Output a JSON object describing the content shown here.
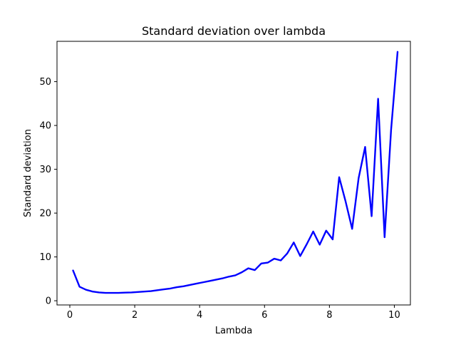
{
  "chart_data": {
    "type": "line",
    "title": "Standard deviation over lambda",
    "xlabel": "Lambda",
    "ylabel": "Standard deviation",
    "xlim": [
      -0.395,
      10.495
    ],
    "ylim": [
      -0.96,
      59.2
    ],
    "xticks": [
      0,
      2,
      4,
      6,
      8,
      10
    ],
    "yticks": [
      0,
      10,
      20,
      30,
      40,
      50
    ],
    "grid": false,
    "legend": "none",
    "series": [
      {
        "color": "#0000ff",
        "x": [
          0.1,
          0.3,
          0.5,
          0.7,
          0.9,
          1.1,
          1.3,
          1.5,
          1.7,
          1.9,
          2.1,
          2.3,
          2.5,
          2.7,
          2.9,
          3.1,
          3.3,
          3.5,
          3.7,
          3.9,
          4.1,
          4.3,
          4.5,
          4.7,
          4.9,
          5.1,
          5.3,
          5.5,
          5.7,
          5.9,
          6.1,
          6.3,
          6.5,
          6.7,
          6.9,
          7.1,
          7.3,
          7.5,
          7.7,
          7.9,
          8.1,
          8.3,
          8.5,
          8.7,
          8.9,
          9.1,
          9.3,
          9.5,
          9.7,
          9.9,
          10.1
        ],
        "values": [
          6.9,
          3.2,
          2.5,
          2.1,
          1.9,
          1.8,
          1.8,
          1.8,
          1.85,
          1.9,
          2.0,
          2.1,
          2.2,
          2.4,
          2.6,
          2.8,
          3.1,
          3.3,
          3.6,
          3.9,
          4.2,
          4.5,
          4.8,
          5.1,
          5.5,
          5.8,
          6.5,
          7.4,
          7.0,
          8.5,
          8.7,
          9.6,
          9.2,
          10.8,
          13.3,
          10.2,
          12.9,
          15.8,
          12.8,
          16.0,
          14.0,
          28.2,
          22.6,
          16.4,
          28.0,
          35.1,
          19.3,
          46.1,
          14.5,
          39.0,
          56.8
        ]
      }
    ]
  }
}
